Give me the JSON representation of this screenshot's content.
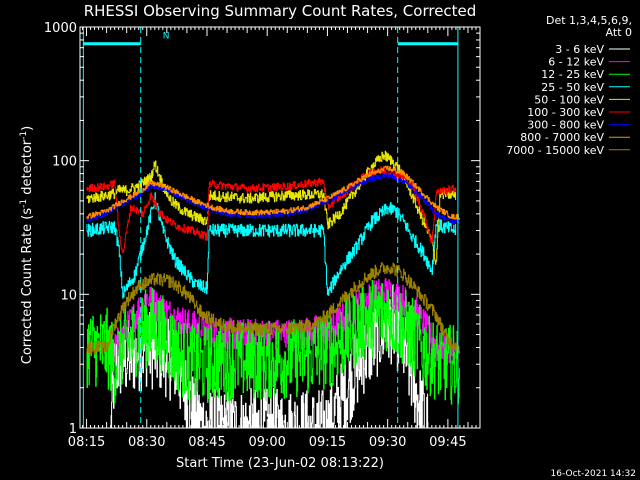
{
  "chart_data": {
    "type": "line",
    "title": "RHESSI Observing Summary Count Rates, Corrected",
    "xlabel": "Start Time (23-Jun-02 08:13:22)",
    "ylabel_parts": [
      "Corrected Count Rate (s",
      "-1",
      " detector",
      "-1",
      ")"
    ],
    "y_scale": "log",
    "ylim": [
      1,
      1000
    ],
    "xlim_min": [
      13.37,
      113
    ],
    "x_ticks": [
      {
        "v": 15,
        "label": "08:15"
      },
      {
        "v": 30,
        "label": "08:30"
      },
      {
        "v": 45,
        "label": "08:45"
      },
      {
        "v": 60,
        "label": "09:00"
      },
      {
        "v": 75,
        "label": "09:15"
      },
      {
        "v": 90,
        "label": "09:30"
      },
      {
        "v": 105,
        "label": "09:45"
      }
    ],
    "y_ticks": [
      {
        "v": 1,
        "label": "1"
      },
      {
        "v": 10,
        "label": "10"
      },
      {
        "v": 100,
        "label": "100"
      },
      {
        "v": 1000,
        "label": "1000"
      }
    ],
    "legend": {
      "position": "right",
      "header": [
        "Det 1,3,4,5,6,9,",
        "Att 0"
      ],
      "entries": [
        {
          "label": "3 - 6 keV",
          "color": "#ffffff"
        },
        {
          "label": "6 - 12 keV",
          "color": "#ff00ff"
        },
        {
          "label": "12 - 25 keV",
          "color": "#00ff00"
        },
        {
          "label": "25 - 50 keV",
          "color": "#00ffff"
        },
        {
          "label": "50 - 100 keV",
          "color": "#e6e600"
        },
        {
          "label": "100 - 300 keV",
          "color": "#ff0000"
        },
        {
          "label": "300 - 800 keV",
          "color": "#0000ff"
        },
        {
          "label": "800 - 7000 keV",
          "color": "#ff8c00"
        },
        {
          "label": "7000 - 15000 keV",
          "color": "#9a8000"
        }
      ]
    },
    "flag_labels": [
      {
        "text": "N",
        "x": 32
      }
    ],
    "night_boundaries": [
      [
        14.2,
        28.5
      ],
      [
        92.5,
        107.5
      ]
    ],
    "saa_color": "#00ffff",
    "series": [
      {
        "name": "3 - 6 keV",
        "color": "#ffffff",
        "noise": 0.3,
        "points": [
          [
            21,
            1
          ],
          [
            22,
            3
          ],
          [
            27,
            3.5
          ],
          [
            30,
            4
          ],
          [
            34,
            3.5
          ],
          [
            37,
            3
          ],
          [
            42,
            1.2
          ],
          [
            45,
            1
          ],
          [
            75,
            1
          ],
          [
            80,
            2
          ],
          [
            84,
            3.5
          ],
          [
            88,
            5
          ],
          [
            91,
            6
          ],
          [
            93,
            5
          ],
          [
            95,
            3
          ],
          [
            98,
            1.5
          ],
          [
            100,
            1
          ]
        ]
      },
      {
        "name": "6 - 12 keV",
        "color": "#ff00ff",
        "noise": 0.12,
        "points": [
          [
            22,
            4
          ],
          [
            24,
            5
          ],
          [
            27,
            7
          ],
          [
            30,
            9.5
          ],
          [
            33,
            8
          ],
          [
            36,
            7
          ],
          [
            40,
            6
          ],
          [
            45,
            5.3
          ],
          [
            52,
            5
          ],
          [
            60,
            5
          ],
          [
            68,
            5
          ],
          [
            74,
            5.5
          ],
          [
            77,
            6
          ],
          [
            80,
            7
          ],
          [
            84,
            9
          ],
          [
            89,
            10.5
          ],
          [
            92,
            10
          ],
          [
            94,
            9
          ],
          [
            96,
            8
          ],
          [
            99,
            6
          ],
          [
            102,
            4
          ],
          [
            105,
            4
          ],
          [
            107,
            3.5
          ]
        ]
      },
      {
        "name": "12 - 25 keV",
        "color": "#00ff00",
        "noise": 0.3,
        "points": [
          [
            15,
            4
          ],
          [
            20,
            4
          ],
          [
            22,
            3
          ],
          [
            24,
            4
          ],
          [
            28,
            5
          ],
          [
            31,
            6
          ],
          [
            34,
            5
          ],
          [
            38,
            3.5
          ],
          [
            41,
            3
          ],
          [
            45,
            3
          ],
          [
            48,
            3.2
          ],
          [
            60,
            3.2
          ],
          [
            70,
            3.4
          ],
          [
            76,
            4
          ],
          [
            80,
            5
          ],
          [
            85,
            6.5
          ],
          [
            90,
            7.5
          ],
          [
            93,
            6
          ],
          [
            96,
            5
          ],
          [
            100,
            3.5
          ],
          [
            104,
            3
          ],
          [
            108,
            3
          ]
        ]
      },
      {
        "name": "25 - 50 keV",
        "color": "#00ffff",
        "noise": 0.05,
        "points": [
          [
            15,
            30
          ],
          [
            22,
            32
          ],
          [
            23,
            22
          ],
          [
            24,
            10
          ],
          [
            27,
            14
          ],
          [
            30,
            30
          ],
          [
            32,
            52
          ],
          [
            34,
            30
          ],
          [
            37,
            18
          ],
          [
            40,
            14
          ],
          [
            42,
            12
          ],
          [
            45,
            11
          ],
          [
            45.5,
            30
          ],
          [
            55,
            30
          ],
          [
            65,
            30
          ],
          [
            74,
            30
          ],
          [
            75,
            10
          ],
          [
            78,
            15
          ],
          [
            82,
            22
          ],
          [
            86,
            35
          ],
          [
            90,
            44
          ],
          [
            92,
            42
          ],
          [
            94,
            35
          ],
          [
            96,
            27
          ],
          [
            99,
            20
          ],
          [
            101,
            15
          ],
          [
            102,
            33
          ],
          [
            107,
            30
          ]
        ]
      },
      {
        "name": "50 - 100 keV",
        "color": "#e6e600",
        "noise": 0.04,
        "points": [
          [
            15,
            52
          ],
          [
            20,
            55
          ],
          [
            22,
            57
          ],
          [
            23,
            60
          ],
          [
            25,
            60
          ],
          [
            28,
            65
          ],
          [
            31,
            75
          ],
          [
            32,
            95
          ],
          [
            34,
            65
          ],
          [
            36,
            50
          ],
          [
            39,
            42
          ],
          [
            42,
            38
          ],
          [
            45,
            35
          ],
          [
            45.5,
            55
          ],
          [
            55,
            52
          ],
          [
            65,
            55
          ],
          [
            74,
            56
          ],
          [
            75,
            33
          ],
          [
            78,
            40
          ],
          [
            82,
            60
          ],
          [
            86,
            90
          ],
          [
            89,
            110
          ],
          [
            91,
            100
          ],
          [
            93,
            85
          ],
          [
            95,
            65
          ],
          [
            98,
            40
          ],
          [
            101,
            25
          ],
          [
            102,
            17
          ],
          [
            103,
            57
          ],
          [
            107,
            55
          ]
        ]
      },
      {
        "name": "100 - 300 keV",
        "color": "#ff0000",
        "noise": 0.03,
        "points": [
          [
            15,
            62
          ],
          [
            20,
            64
          ],
          [
            22,
            68
          ],
          [
            23,
            30
          ],
          [
            24,
            20
          ],
          [
            26,
            45
          ],
          [
            29,
            40
          ],
          [
            31,
            55
          ],
          [
            33,
            42
          ],
          [
            35,
            36
          ],
          [
            38,
            32
          ],
          [
            41,
            30
          ],
          [
            45,
            27
          ],
          [
            45.5,
            67
          ],
          [
            55,
            62
          ],
          [
            65,
            64
          ],
          [
            74,
            70
          ],
          [
            75,
            45
          ],
          [
            80,
            60
          ],
          [
            85,
            80
          ],
          [
            88,
            85
          ],
          [
            91,
            82
          ],
          [
            94,
            75
          ],
          [
            96,
            65
          ],
          [
            99,
            40
          ],
          [
            101,
            24
          ],
          [
            102,
            58
          ],
          [
            107,
            62
          ]
        ]
      },
      {
        "name": "300 - 800 keV",
        "color": "#0000ff",
        "noise": 0.02,
        "points": [
          [
            15,
            36
          ],
          [
            20,
            40
          ],
          [
            24,
            48
          ],
          [
            28,
            55
          ],
          [
            31,
            65
          ],
          [
            34,
            62
          ],
          [
            38,
            55
          ],
          [
            42,
            48
          ],
          [
            46,
            43
          ],
          [
            50,
            40
          ],
          [
            55,
            39
          ],
          [
            60,
            39
          ],
          [
            65,
            40
          ],
          [
            70,
            43
          ],
          [
            75,
            50
          ],
          [
            80,
            60
          ],
          [
            85,
            72
          ],
          [
            90,
            78
          ],
          [
            94,
            70
          ],
          [
            98,
            55
          ],
          [
            102,
            40
          ],
          [
            106,
            35
          ],
          [
            108,
            35
          ]
        ]
      },
      {
        "name": "800 - 7000 keV",
        "color": "#ff8c00",
        "noise": 0.02,
        "points": [
          [
            15,
            38
          ],
          [
            20,
            42
          ],
          [
            24,
            50
          ],
          [
            28,
            58
          ],
          [
            31,
            68
          ],
          [
            34,
            65
          ],
          [
            38,
            57
          ],
          [
            42,
            50
          ],
          [
            46,
            45
          ],
          [
            50,
            42
          ],
          [
            55,
            41
          ],
          [
            60,
            41
          ],
          [
            65,
            42
          ],
          [
            70,
            45
          ],
          [
            75,
            52
          ],
          [
            80,
            63
          ],
          [
            85,
            78
          ],
          [
            90,
            88
          ],
          [
            94,
            80
          ],
          [
            98,
            60
          ],
          [
            102,
            45
          ],
          [
            106,
            38
          ],
          [
            108,
            38
          ]
        ]
      },
      {
        "name": "7000 - 15000 keV",
        "color": "#9a8000",
        "noise": 0.05,
        "points": [
          [
            15,
            4
          ],
          [
            20,
            4
          ],
          [
            22,
            6
          ],
          [
            25,
            9
          ],
          [
            28,
            11.5
          ],
          [
            32,
            13
          ],
          [
            36,
            12.5
          ],
          [
            40,
            10
          ],
          [
            44,
            7
          ],
          [
            48,
            6
          ],
          [
            55,
            5.5
          ],
          [
            65,
            5.5
          ],
          [
            72,
            6
          ],
          [
            76,
            7.5
          ],
          [
            80,
            10
          ],
          [
            84,
            13
          ],
          [
            88,
            15.5
          ],
          [
            91,
            16
          ],
          [
            94,
            14
          ],
          [
            98,
            10
          ],
          [
            102,
            7
          ],
          [
            105,
            4.5
          ],
          [
            108,
            4
          ]
        ]
      }
    ]
  },
  "footer": {
    "timestamp": "16-Oct-2021 14:32"
  }
}
